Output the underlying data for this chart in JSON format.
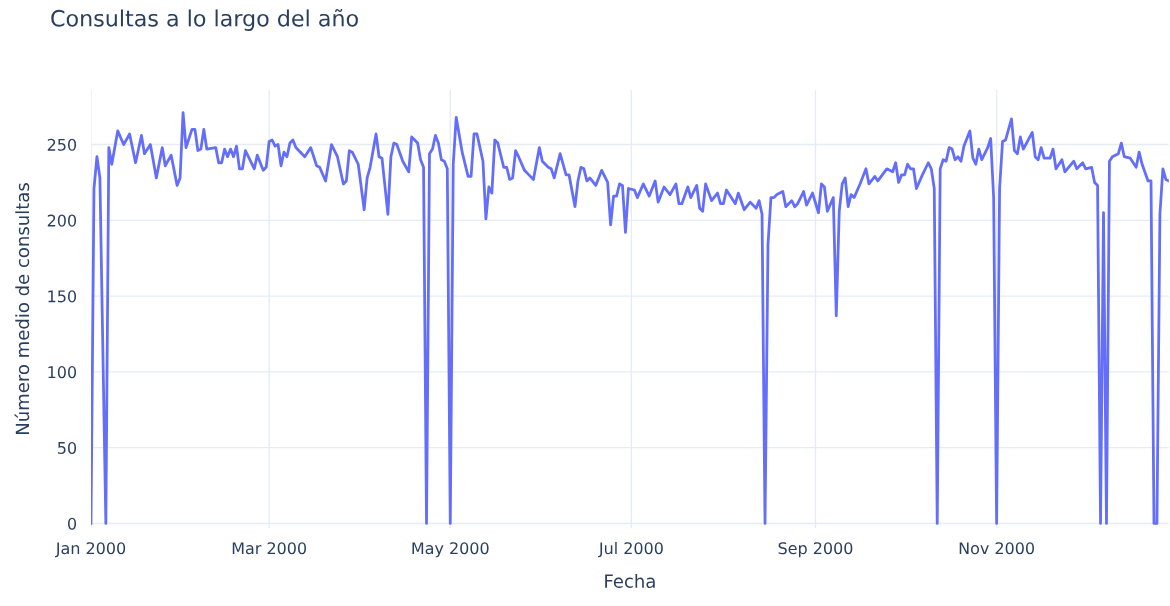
{
  "chart_data": {
    "type": "line",
    "title": "Consultas a lo largo del año",
    "xlabel": "Fecha",
    "ylabel": "Número medio de consultas",
    "x": [
      "2000-01-01",
      "2000-01-02",
      "2000-01-03",
      "2000-01-04",
      "2000-01-06",
      "2000-01-07",
      "2000-01-08",
      "2000-01-10",
      "2000-01-12",
      "2000-01-14",
      "2000-01-16",
      "2000-01-18",
      "2000-01-19",
      "2000-01-21",
      "2000-01-23",
      "2000-01-25",
      "2000-01-26",
      "2000-01-28",
      "2000-01-30",
      "2000-01-31",
      "2000-02-01",
      "2000-02-02",
      "2000-02-04",
      "2000-02-05",
      "2000-02-06",
      "2000-02-07",
      "2000-02-08",
      "2000-02-09",
      "2000-02-12",
      "2000-02-13",
      "2000-02-14",
      "2000-02-15",
      "2000-02-16",
      "2000-02-17",
      "2000-02-18",
      "2000-02-19",
      "2000-02-20",
      "2000-02-21",
      "2000-02-22",
      "2000-02-23",
      "2000-02-25",
      "2000-02-26",
      "2000-02-28",
      "2000-02-29",
      "2000-03-01",
      "2000-03-02",
      "2000-03-03",
      "2000-03-04",
      "2000-03-05",
      "2000-03-06",
      "2000-03-07",
      "2000-03-08",
      "2000-03-09",
      "2000-03-10",
      "2000-03-13",
      "2000-03-15",
      "2000-03-17",
      "2000-03-18",
      "2000-03-20",
      "2000-03-22",
      "2000-03-24",
      "2000-03-26",
      "2000-03-27",
      "2000-03-28",
      "2000-03-29",
      "2000-03-31",
      "2000-04-02",
      "2000-04-03",
      "2000-04-04",
      "2000-04-06",
      "2000-04-07",
      "2000-04-08",
      "2000-04-10",
      "2000-04-11",
      "2000-04-12",
      "2000-04-13",
      "2000-04-15",
      "2000-04-17",
      "2000-04-18",
      "2000-04-20",
      "2000-04-21",
      "2000-04-22",
      "2000-04-23",
      "2000-04-24",
      "2000-04-25",
      "2000-04-26",
      "2000-04-27",
      "2000-04-28",
      "2000-04-29",
      "2000-04-30",
      "2000-05-01",
      "2000-05-02",
      "2000-05-03",
      "2000-05-05",
      "2000-05-07",
      "2000-05-08",
      "2000-05-09",
      "2000-05-10",
      "2000-05-12",
      "2000-05-13",
      "2000-05-14",
      "2000-05-15",
      "2000-05-16",
      "2000-05-17",
      "2000-05-19",
      "2000-05-20",
      "2000-05-21",
      "2000-05-22",
      "2000-05-23",
      "2000-05-24",
      "2000-05-26",
      "2000-05-27",
      "2000-05-29",
      "2000-05-31",
      "2000-06-01",
      "2000-06-03",
      "2000-06-04",
      "2000-06-05",
      "2000-06-07",
      "2000-06-09",
      "2000-06-10",
      "2000-06-12",
      "2000-06-13",
      "2000-06-14",
      "2000-06-15",
      "2000-06-16",
      "2000-06-17",
      "2000-06-19",
      "2000-06-21",
      "2000-06-23",
      "2000-06-24",
      "2000-06-25",
      "2000-06-26",
      "2000-06-27",
      "2000-06-28",
      "2000-06-29",
      "2000-06-30",
      "2000-07-02",
      "2000-07-03",
      "2000-07-05",
      "2000-07-07",
      "2000-07-09",
      "2000-07-10",
      "2000-07-12",
      "2000-07-14",
      "2000-07-16",
      "2000-07-17",
      "2000-07-18",
      "2000-07-20",
      "2000-07-21",
      "2000-07-23",
      "2000-07-24",
      "2000-07-25",
      "2000-07-26",
      "2000-07-28",
      "2000-07-30",
      "2000-07-31",
      "2000-08-01",
      "2000-08-02",
      "2000-08-05",
      "2000-08-06",
      "2000-08-08",
      "2000-08-10",
      "2000-08-12",
      "2000-08-13",
      "2000-08-14",
      "2000-08-15",
      "2000-08-16",
      "2000-08-17",
      "2000-08-18",
      "2000-08-19",
      "2000-08-21",
      "2000-08-22",
      "2000-08-24",
      "2000-08-25",
      "2000-08-26",
      "2000-08-28",
      "2000-08-29",
      "2000-08-31",
      "2000-09-02",
      "2000-09-03",
      "2000-09-04",
      "2000-09-05",
      "2000-09-07",
      "2000-09-08",
      "2000-09-09",
      "2000-09-10",
      "2000-09-11",
      "2000-09-12",
      "2000-09-13",
      "2000-09-14",
      "2000-09-16",
      "2000-09-18",
      "2000-09-19",
      "2000-09-21",
      "2000-09-22",
      "2000-09-25",
      "2000-09-27",
      "2000-09-28",
      "2000-09-29",
      "2000-09-30",
      "2000-10-01",
      "2000-10-02",
      "2000-10-03",
      "2000-10-04",
      "2000-10-05",
      "2000-10-07",
      "2000-10-09",
      "2000-10-10",
      "2000-10-11",
      "2000-10-12",
      "2000-10-13",
      "2000-10-14",
      "2000-10-15",
      "2000-10-16",
      "2000-10-17",
      "2000-10-18",
      "2000-10-19",
      "2000-10-20",
      "2000-10-21",
      "2000-10-23",
      "2000-10-24",
      "2000-10-25",
      "2000-10-26",
      "2000-10-27",
      "2000-10-29",
      "2000-10-30",
      "2000-10-31",
      "2000-11-01",
      "2000-11-02",
      "2000-11-03",
      "2000-11-04",
      "2000-11-06",
      "2000-11-07",
      "2000-11-08",
      "2000-11-09",
      "2000-11-10",
      "2000-11-13",
      "2000-11-14",
      "2000-11-15",
      "2000-11-16",
      "2000-11-17",
      "2000-11-19",
      "2000-11-20",
      "2000-11-21",
      "2000-11-23",
      "2000-11-24",
      "2000-11-27",
      "2000-11-28",
      "2000-11-30",
      "2000-12-01",
      "2000-12-03",
      "2000-12-04",
      "2000-12-05",
      "2000-12-06",
      "2000-12-07",
      "2000-12-08",
      "2000-12-09",
      "2000-12-10",
      "2000-12-11",
      "2000-12-12",
      "2000-12-13",
      "2000-12-14",
      "2000-12-16",
      "2000-12-18",
      "2000-12-19",
      "2000-12-20",
      "2000-12-22",
      "2000-12-23",
      "2000-12-24",
      "2000-12-25",
      "2000-12-26",
      "2000-12-27",
      "2000-12-28",
      "2000-12-29"
    ],
    "series": [
      {
        "color": "#636efa",
        "values": [
          0,
          221,
          242,
          228,
          0,
          248,
          237,
          259,
          250,
          257,
          238,
          256,
          244,
          250,
          228,
          248,
          236,
          243,
          223,
          228,
          271,
          248,
          260,
          260,
          246,
          247,
          260,
          247,
          248,
          238,
          238,
          247,
          242,
          247,
          242,
          249,
          234,
          234,
          246,
          242,
          234,
          243,
          233,
          235,
          252,
          253,
          249,
          250,
          236,
          245,
          242,
          251,
          253,
          248,
          242,
          248,
          236,
          235,
          226,
          250,
          242,
          224,
          226,
          246,
          245,
          237,
          207,
          228,
          235,
          257,
          242,
          241,
          204,
          242,
          251,
          250,
          239,
          232,
          255,
          251,
          240,
          235,
          0,
          244,
          247,
          256,
          251,
          240,
          239,
          234,
          0,
          237,
          268,
          245,
          229,
          229,
          257,
          257,
          239,
          201,
          222,
          218,
          253,
          251,
          235,
          235,
          227,
          228,
          246,
          242,
          233,
          231,
          227,
          248,
          239,
          235,
          234,
          228,
          244,
          230,
          230,
          209,
          226,
          235,
          234,
          226,
          228,
          223,
          233,
          225,
          197,
          216,
          216,
          224,
          223,
          192,
          221,
          220,
          215,
          224,
          216,
          226,
          212,
          222,
          217,
          224,
          211,
          211,
          222,
          215,
          223,
          208,
          206,
          224,
          213,
          218,
          211,
          211,
          220,
          211,
          218,
          207,
          212,
          208,
          213,
          204,
          0,
          184,
          215,
          215,
          217,
          219,
          209,
          213,
          209,
          211,
          219,
          210,
          218,
          205,
          224,
          222,
          206,
          215,
          137,
          206,
          224,
          228,
          209,
          217,
          215,
          224,
          234,
          224,
          229,
          226,
          234,
          232,
          238,
          225,
          230,
          230,
          237,
          234,
          234,
          221,
          230,
          238,
          234,
          221,
          0,
          234,
          240,
          239,
          248,
          247,
          240,
          242,
          239,
          249,
          259,
          241,
          237,
          247,
          240,
          248,
          254,
          215,
          0,
          221,
          252,
          253,
          267,
          246,
          244,
          255,
          247,
          258,
          242,
          240,
          248,
          241,
          241,
          247,
          234,
          240,
          232,
          239,
          234,
          238,
          234,
          235,
          225,
          223,
          0,
          205,
          0,
          239,
          242,
          243,
          244,
          251,
          242,
          241,
          235,
          245,
          237,
          226,
          226,
          0,
          0,
          204,
          234,
          227,
          226
        ]
      }
    ],
    "xlim": [
      "2000-01-01",
      "2000-12-29"
    ],
    "ylim": [
      -3,
      286
    ],
    "xticks": [
      {
        "value": "2000-01-01",
        "label": "Jan 2000"
      },
      {
        "value": "2000-03-01",
        "label": "Mar 2000"
      },
      {
        "value": "2000-05-01",
        "label": "May 2000"
      },
      {
        "value": "2000-07-01",
        "label": "Jul 2000"
      },
      {
        "value": "2000-09-01",
        "label": "Sep 2000"
      },
      {
        "value": "2000-11-01",
        "label": "Nov 2000"
      }
    ],
    "yticks": [
      0,
      50,
      100,
      150,
      200,
      250
    ],
    "grid": true,
    "legend": false
  }
}
